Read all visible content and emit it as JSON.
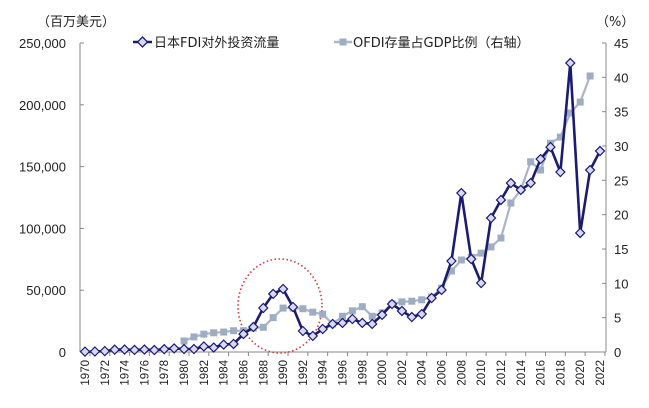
{
  "chart_data": {
    "type": "line",
    "title": "",
    "left_axis_unit": "（百万美元）",
    "right_axis_unit": "（%）",
    "xlabel": "",
    "ylabel": "百万美元",
    "y2label": "%",
    "ylim": [
      0,
      250000
    ],
    "y2lim": [
      0,
      45
    ],
    "yticks": [
      0,
      50000,
      100000,
      150000,
      200000,
      250000
    ],
    "ytick_labels": [
      "0",
      "50,000",
      "100,000",
      "150,000",
      "200,000",
      "250,000"
    ],
    "y2ticks": [
      0,
      5,
      10,
      15,
      20,
      25,
      30,
      35,
      40,
      45
    ],
    "y2tick_labels": [
      "0",
      "5",
      "10",
      "15",
      "20",
      "25",
      "30",
      "35",
      "40",
      "45"
    ],
    "xtick_labels": [
      "1970",
      "1972",
      "1974",
      "1976",
      "1978",
      "1980",
      "1982",
      "1984",
      "1986",
      "1988",
      "1990",
      "1992",
      "1994",
      "1996",
      "1998",
      "2000",
      "2002",
      "2004",
      "2006",
      "2008",
      "2010",
      "2012",
      "2014",
      "2016",
      "2018",
      "2020",
      "2022"
    ],
    "grid": false,
    "legend_position": "top",
    "x": [
      1970,
      1971,
      1972,
      1973,
      1974,
      1975,
      1976,
      1977,
      1978,
      1979,
      1980,
      1981,
      1982,
      1983,
      1984,
      1985,
      1986,
      1987,
      1988,
      1989,
      1990,
      1991,
      1992,
      1993,
      1994,
      1995,
      1996,
      1997,
      1998,
      1999,
      2000,
      2001,
      2002,
      2003,
      2004,
      2005,
      2006,
      2007,
      2008,
      2009,
      2010,
      2011,
      2012,
      2013,
      2014,
      2015,
      2016,
      2017,
      2018,
      2019,
      2020,
      2021,
      2022
    ],
    "series": [
      {
        "name": "日本FDI对外投资流量",
        "axis": "left",
        "color": "#1b1b72",
        "marker": "diamond",
        "marker_fill": "#d9d9f6",
        "values": [
          300,
          400,
          700,
          1900,
          2000,
          1700,
          2000,
          1600,
          2300,
          2900,
          2400,
          2400,
          4500,
          3600,
          6000,
          6500,
          14500,
          20200,
          35600,
          47000,
          51000,
          36400,
          17000,
          13000,
          18600,
          22700,
          23500,
          26700,
          23500,
          22700,
          30000,
          38800,
          33200,
          28300,
          30700,
          43700,
          50200,
          73600,
          128600,
          75200,
          55800,
          108400,
          123000,
          136700,
          131100,
          136700,
          156100,
          165800,
          145600,
          233800,
          96300,
          147200,
          162600
        ]
      },
      {
        "name": "OFDI存量占GDP比例（右轴）",
        "axis": "right",
        "color": "#aab5c5",
        "marker": "square",
        "marker_fill": "#9eadc2",
        "x_start": 1980,
        "values": [
          1.6,
          2.2,
          2.6,
          2.8,
          2.9,
          3.1,
          3.1,
          3.5,
          3.6,
          5.0,
          6.4,
          6.4,
          6.3,
          5.8,
          5.5,
          4.1,
          5.2,
          6.0,
          6.6,
          5.2,
          5.7,
          7.0,
          7.3,
          7.4,
          7.6,
          8.0,
          9.3,
          11.8,
          13.4,
          13.8,
          14.4,
          15.3,
          16.6,
          21.7,
          23.6,
          27.7,
          26.5,
          30.4,
          31.3,
          34.8,
          36.4,
          40.2
        ]
      }
    ],
    "annotations": [
      {
        "type": "dotted-ellipse",
        "color": "#d23a3a",
        "x_range": [
          1986,
          1994
        ],
        "description": "highlight 1986-1993 peak"
      }
    ]
  },
  "legend": {
    "series1_label": "日本FDI对外投资流量",
    "series2_label": "OFDI存量占GDP比例（右轴）"
  }
}
